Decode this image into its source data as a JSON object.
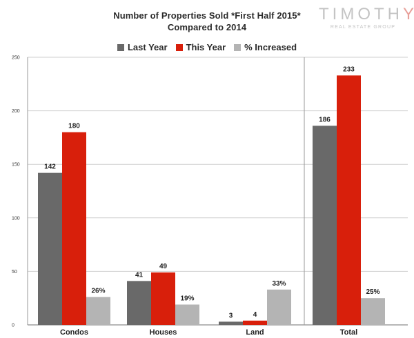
{
  "title": {
    "line1": "Number of Properties Sold *First Half 2015*",
    "line2": "Compared to 2014"
  },
  "logo": {
    "main": "TIMOTHY",
    "sub": "REAL ESTATE GROUP"
  },
  "colors": {
    "last_year": "#696969",
    "this_year": "#d81f0b",
    "pct": "#b4b4b4"
  },
  "chart_data": {
    "type": "bar",
    "title": "Number of Properties Sold *First Half 2015* Compared to 2014",
    "categories": [
      "Condos",
      "Houses",
      "Land",
      "Total"
    ],
    "series": [
      {
        "name": "Last Year",
        "values": [
          142,
          41,
          3,
          186
        ],
        "labels": [
          "142",
          "41",
          "3",
          "186"
        ]
      },
      {
        "name": "This Year",
        "values": [
          180,
          49,
          4,
          233
        ],
        "labels": [
          "180",
          "49",
          "4",
          "233"
        ]
      },
      {
        "name": "% Increased",
        "values": [
          26,
          19,
          33,
          25
        ],
        "labels": [
          "26%",
          "19%",
          "33%",
          "25%"
        ]
      }
    ],
    "y_ticks": [
      0,
      50,
      100,
      150,
      200,
      250
    ],
    "ylim": [
      0,
      250
    ],
    "grid": true,
    "legend_position": "top-center",
    "xlabel": "",
    "ylabel": ""
  }
}
